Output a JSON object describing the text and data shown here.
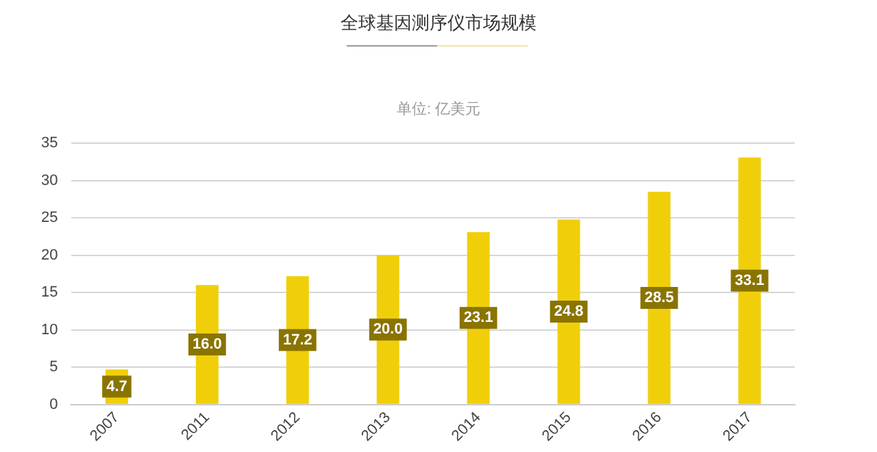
{
  "chart_data": {
    "type": "bar",
    "title": "全球基因测序仪市场规模",
    "subtitle": "单位: 亿美元",
    "categories": [
      "2007",
      "2011",
      "2012",
      "2013",
      "2014",
      "2015",
      "2016",
      "2017"
    ],
    "values": [
      4.7,
      16.0,
      17.2,
      20.0,
      23.1,
      24.8,
      28.5,
      33.1
    ],
    "value_labels": [
      "4.7",
      "16.0",
      "17.2",
      "20.0",
      "23.1",
      "24.8",
      "28.5",
      "33.1"
    ],
    "color": "#f0cf0a",
    "ylim": [
      0,
      35
    ],
    "yticks": [
      0,
      5,
      10,
      15,
      20,
      25,
      30,
      35
    ],
    "grid": "y",
    "legend": false
  }
}
